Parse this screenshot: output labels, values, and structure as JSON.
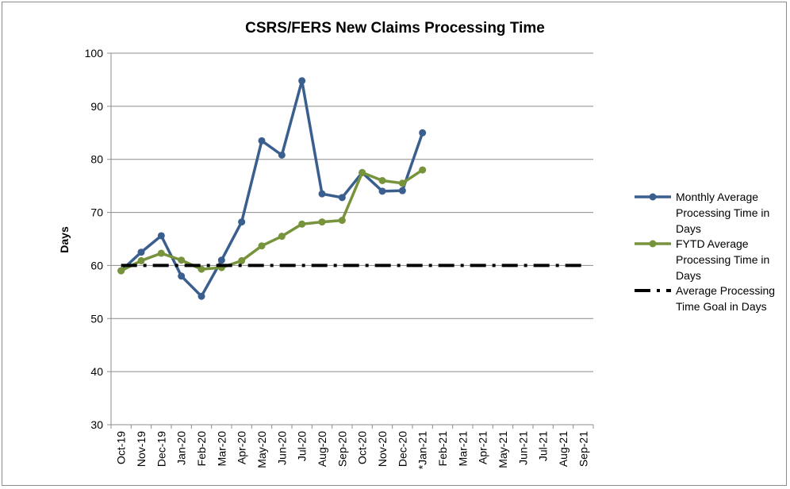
{
  "chart_data": {
    "type": "line",
    "title": "CSRS/FERS New Claims Processing Time",
    "xlabel": "",
    "ylabel": "Days",
    "ylim": [
      30,
      100
    ],
    "yticks": [
      30,
      40,
      50,
      60,
      70,
      80,
      90,
      100
    ],
    "grid": true,
    "legend_position": "right",
    "categories": [
      "Oct-19",
      "Nov-19",
      "Dec-19",
      "Jan-20",
      "Feb-20",
      "Mar-20",
      "Apr-20",
      "May-20",
      "Jun-20",
      "Jul-20",
      "Aug-20",
      "Sep-20",
      "Oct-20",
      "Nov-20",
      "Dec-20",
      "*Jan-21",
      "Feb-21",
      "Mar-21",
      "Apr-21",
      "May-21",
      "Jun-21",
      "Jul-21",
      "Aug-21",
      "Sep-21"
    ],
    "series": [
      {
        "name": "Monthly Average Processing Time in Days",
        "legend_lines": [
          "Monthly Average",
          "Processing Time in",
          "Days"
        ],
        "color": "#3a5f8f",
        "style": "solid-marker",
        "values": [
          59,
          62.5,
          65.6,
          58,
          54.2,
          61,
          68.2,
          83.5,
          80.8,
          94.8,
          73.5,
          72.8,
          77.5,
          74,
          74.1,
          85,
          null,
          null,
          null,
          null,
          null,
          null,
          null,
          null
        ]
      },
      {
        "name": "FYTD Average Processing Time in Days",
        "legend_lines": [
          "FYTD Average",
          "Processing Time in",
          "Days"
        ],
        "color": "#77933c",
        "style": "solid-marker",
        "values": [
          59,
          60.9,
          62.3,
          61,
          59.3,
          59.6,
          60.9,
          63.7,
          65.5,
          67.8,
          68.2,
          68.5,
          77.5,
          76,
          75.5,
          78,
          null,
          null,
          null,
          null,
          null,
          null,
          null,
          null
        ]
      },
      {
        "name": "Average Processing Time Goal in Days",
        "legend_lines": [
          "Average Processing",
          "Time Goal in Days"
        ],
        "color": "#000000",
        "style": "dash-dot",
        "values": [
          60,
          60,
          60,
          60,
          60,
          60,
          60,
          60,
          60,
          60,
          60,
          60,
          60,
          60,
          60,
          60,
          60,
          60,
          60,
          60,
          60,
          60,
          60,
          60
        ]
      }
    ]
  }
}
